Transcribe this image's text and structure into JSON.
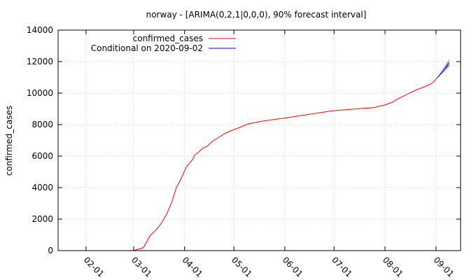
{
  "chart_data": {
    "type": "line",
    "title": "norway -  [ARIMA(0,2,1|0,0,0), 90% forecast interval]",
    "xlabel": "",
    "ylabel": "confirmed_cases",
    "xlim": [
      "2020-01-15",
      "2020-09-16"
    ],
    "ylim": [
      0,
      14000
    ],
    "yticks": [
      0,
      2000,
      4000,
      6000,
      8000,
      10000,
      12000,
      14000
    ],
    "ytick_labels": [
      "0",
      "2000",
      "4000",
      "6000",
      "8000",
      "10000",
      "12000",
      "14000"
    ],
    "xticks": [
      "2020-02-01",
      "2020-03-01",
      "2020-04-01",
      "2020-05-01",
      "2020-06-01",
      "2020-07-01",
      "2020-08-01",
      "2020-09-01"
    ],
    "xtick_labels": [
      "02-01",
      "03-01",
      "04-01",
      "05-01",
      "06-01",
      "07-01",
      "08-01",
      "09-01"
    ],
    "grid": true,
    "legend_position": "top-left",
    "series": [
      {
        "name": "confirmed_cases",
        "color": "#ff0000",
        "points": [
          [
            "2020-02-26",
            1
          ],
          [
            "2020-03-01",
            15
          ],
          [
            "2020-03-06",
            150
          ],
          [
            "2020-03-07",
            200
          ],
          [
            "2020-03-09",
            560
          ],
          [
            "2020-03-11",
            950
          ],
          [
            "2020-03-15",
            1350
          ],
          [
            "2020-03-18",
            1750
          ],
          [
            "2020-03-21",
            2300
          ],
          [
            "2020-03-24",
            3000
          ],
          [
            "2020-03-27",
            4000
          ],
          [
            "2020-03-30",
            4600
          ],
          [
            "2020-04-02",
            5300
          ],
          [
            "2020-04-06",
            5800
          ],
          [
            "2020-04-07",
            6050
          ],
          [
            "2020-04-09",
            6200
          ],
          [
            "2020-04-12",
            6500
          ],
          [
            "2020-04-15",
            6650
          ],
          [
            "2020-04-18",
            6950
          ],
          [
            "2020-04-22",
            7200
          ],
          [
            "2020-04-25",
            7400
          ],
          [
            "2020-04-29",
            7600
          ],
          [
            "2020-05-04",
            7800
          ],
          [
            "2020-05-10",
            8050
          ],
          [
            "2020-05-20",
            8250
          ],
          [
            "2020-06-01",
            8420
          ],
          [
            "2020-06-15",
            8640
          ],
          [
            "2020-06-30",
            8880
          ],
          [
            "2020-07-15",
            9000
          ],
          [
            "2020-07-25",
            9080
          ],
          [
            "2020-08-01",
            9250
          ],
          [
            "2020-08-05",
            9400
          ],
          [
            "2020-08-10",
            9700
          ],
          [
            "2020-08-15",
            9950
          ],
          [
            "2020-08-20",
            10200
          ],
          [
            "2020-08-25",
            10400
          ],
          [
            "2020-08-30",
            10650
          ],
          [
            "2020-09-02",
            11000
          ],
          [
            "2020-09-06",
            11500
          ],
          [
            "2020-09-09",
            11800
          ]
        ]
      },
      {
        "name": "Conditional on 2020-09-02",
        "color": "#0000ff",
        "points": [
          [
            "2020-09-02",
            11000
          ],
          [
            "2020-09-05",
            11350
          ],
          [
            "2020-09-09",
            11950
          ]
        ],
        "interval_upper": [
          [
            "2020-09-02",
            11000
          ],
          [
            "2020-09-05",
            11500
          ],
          [
            "2020-09-09",
            12200
          ]
        ],
        "interval_lower": [
          [
            "2020-09-02",
            11000
          ],
          [
            "2020-09-05",
            11250
          ],
          [
            "2020-09-09",
            11650
          ]
        ],
        "interval_color": "#b4b8e6"
      }
    ]
  }
}
